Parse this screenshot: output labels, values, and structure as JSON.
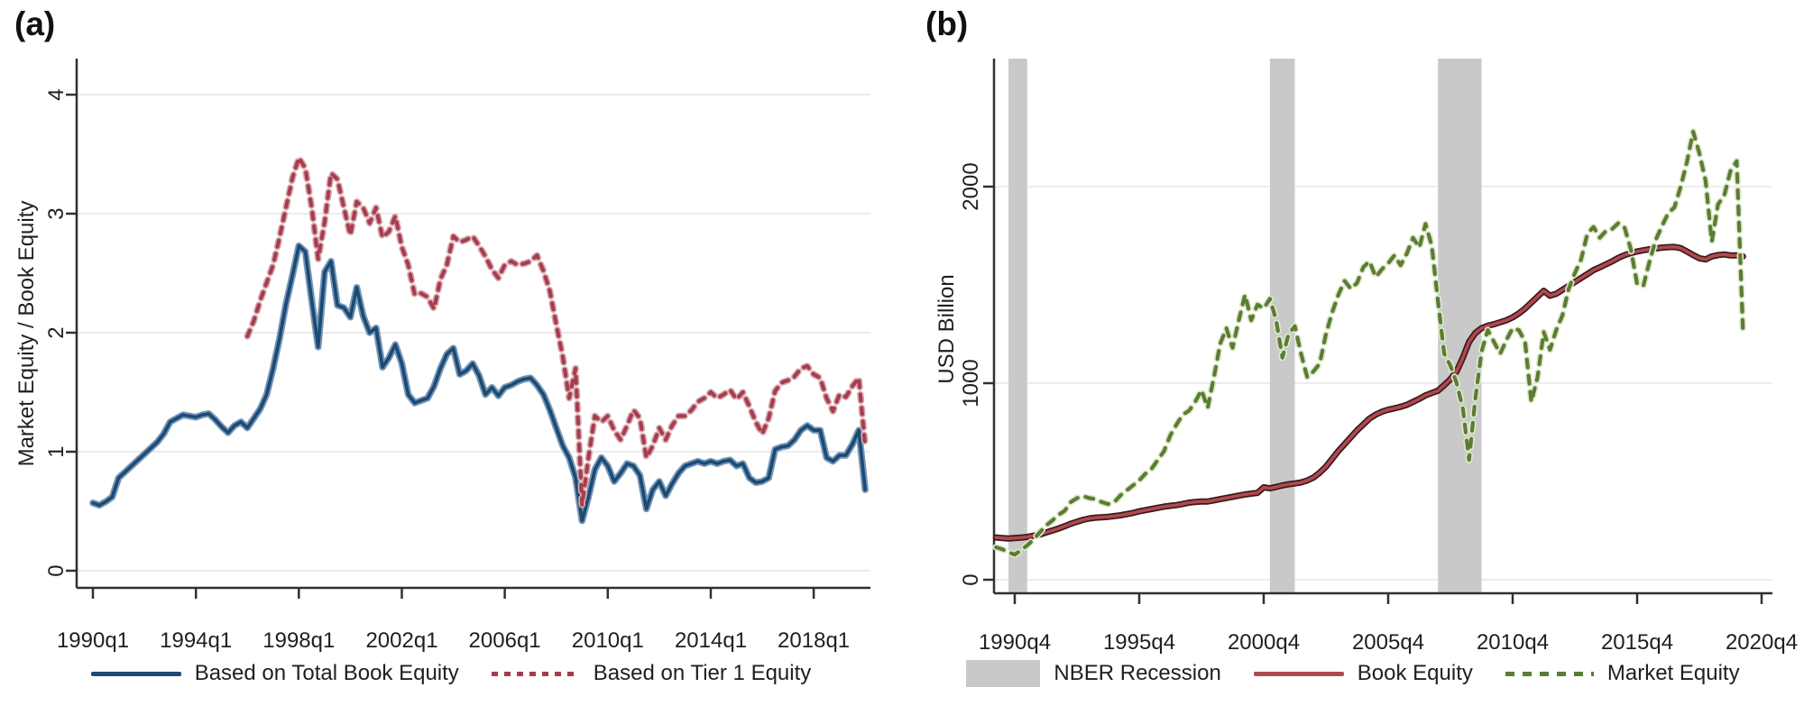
{
  "figure": {
    "background": "#ffffff"
  },
  "panels": {
    "a": {
      "label": "(a)",
      "y_axis": {
        "title": "Market Equity / Book Equity",
        "ticks": [
          0,
          1,
          2,
          3,
          4
        ],
        "range": [
          0,
          4
        ],
        "tick_labels_rotated": true
      },
      "x_axis": {
        "ticks": [
          "1990q1",
          "1994q1",
          "1998q1",
          "2002q1",
          "2006q1",
          "2010q1",
          "2014q1",
          "2018q1"
        ]
      }
    },
    "b": {
      "label": "(b)",
      "y_axis": {
        "title": "USD Billion",
        "ticks": [
          0,
          1000,
          2000
        ],
        "range": [
          0,
          2650
        ],
        "tick_labels_rotated": true
      },
      "x_axis": {
        "ticks": [
          "1990q4",
          "1995q4",
          "2000q4",
          "2005q4",
          "2010q4",
          "2015q4",
          "2020q4"
        ]
      }
    }
  },
  "chart_data": [
    {
      "type": "line",
      "panel": "a",
      "title": "",
      "xlabel": "",
      "ylabel": "Market Equity / Book Equity",
      "ylim": [
        0,
        4
      ],
      "grid": true,
      "legend_position": "bottom",
      "frequency": "quarterly",
      "series": [
        {
          "name": "Based on Total Book Equity",
          "style": "solid",
          "color": "#1b4a74",
          "halo": "#7495b5",
          "x_start": "1990q1",
          "values": [
            0.57,
            0.55,
            0.58,
            0.62,
            0.78,
            0.83,
            0.88,
            0.93,
            0.98,
            1.03,
            1.08,
            1.15,
            1.25,
            1.28,
            1.31,
            1.3,
            1.29,
            1.31,
            1.32,
            1.27,
            1.21,
            1.16,
            1.22,
            1.25,
            1.2,
            1.28,
            1.36,
            1.48,
            1.7,
            1.95,
            2.24,
            2.48,
            2.73,
            2.68,
            2.27,
            1.88,
            2.51,
            2.6,
            2.23,
            2.21,
            2.13,
            2.38,
            2.14,
            2.0,
            2.04,
            1.71,
            1.79,
            1.9,
            1.74,
            1.48,
            1.41,
            1.43,
            1.45,
            1.55,
            1.7,
            1.82,
            1.87,
            1.65,
            1.68,
            1.74,
            1.64,
            1.48,
            1.54,
            1.47,
            1.54,
            1.56,
            1.59,
            1.61,
            1.62,
            1.56,
            1.48,
            1.35,
            1.2,
            1.05,
            0.95,
            0.78,
            0.42,
            0.62,
            0.85,
            0.95,
            0.88,
            0.75,
            0.82,
            0.9,
            0.88,
            0.8,
            0.52,
            0.68,
            0.75,
            0.63,
            0.73,
            0.82,
            0.88,
            0.9,
            0.92,
            0.9,
            0.92,
            0.9,
            0.92,
            0.93,
            0.88,
            0.9,
            0.78,
            0.74,
            0.75,
            0.78,
            1.02,
            1.04,
            1.05,
            1.1,
            1.18,
            1.22,
            1.18,
            1.18,
            0.95,
            0.92,
            0.97,
            0.97,
            1.06,
            1.18,
            0.68
          ]
        },
        {
          "name": "Based on Tier 1 Equity",
          "style": "dashed",
          "color": "#a63d4e",
          "halo": "#d8aab1",
          "x_start": "1996q1",
          "values": [
            1.97,
            2.1,
            2.27,
            2.42,
            2.57,
            2.8,
            3.05,
            3.3,
            3.47,
            3.38,
            3.05,
            2.62,
            2.93,
            3.34,
            3.29,
            3.05,
            2.82,
            3.1,
            3.05,
            2.92,
            3.05,
            2.8,
            2.85,
            2.98,
            2.72,
            2.57,
            2.32,
            2.33,
            2.3,
            2.2,
            2.45,
            2.57,
            2.81,
            2.76,
            2.78,
            2.81,
            2.73,
            2.64,
            2.53,
            2.46,
            2.57,
            2.6,
            2.57,
            2.58,
            2.6,
            2.65,
            2.52,
            2.35,
            2.07,
            1.8,
            1.45,
            1.7,
            0.55,
            0.95,
            1.3,
            1.25,
            1.3,
            1.18,
            1.1,
            1.22,
            1.35,
            1.28,
            0.95,
            1.05,
            1.2,
            1.1,
            1.22,
            1.3,
            1.3,
            1.35,
            1.42,
            1.45,
            1.5,
            1.45,
            1.48,
            1.52,
            1.44,
            1.5,
            1.38,
            1.25,
            1.15,
            1.28,
            1.51,
            1.58,
            1.6,
            1.63,
            1.7,
            1.72,
            1.65,
            1.62,
            1.45,
            1.34,
            1.48,
            1.46,
            1.55,
            1.62,
            1.05
          ]
        }
      ]
    },
    {
      "type": "line",
      "panel": "b",
      "title": "",
      "xlabel": "",
      "ylabel": "USD Billion",
      "ylim": [
        0,
        2650
      ],
      "grid": true,
      "legend_position": "bottom",
      "frequency": "quarterly",
      "recession_label": "NBER Recession",
      "recession_color": "#c9c9c9",
      "recessions": [
        {
          "start": "1990q3",
          "end": "1991q1"
        },
        {
          "start": "2001q1",
          "end": "2001q4"
        },
        {
          "start": "2007q4",
          "end": "2009q2"
        }
      ],
      "series": [
        {
          "name": "Book Equity",
          "style": "solid",
          "color": "#ad4a50",
          "halo": "#3d181c",
          "x_start": "1990q1",
          "values": [
            215,
            212,
            210,
            212,
            214,
            218,
            224,
            230,
            240,
            250,
            260,
            272,
            285,
            295,
            305,
            312,
            316,
            318,
            320,
            324,
            328,
            334,
            340,
            348,
            354,
            360,
            366,
            372,
            376,
            380,
            386,
            392,
            396,
            398,
            398,
            404,
            410,
            416,
            422,
            428,
            434,
            438,
            442,
            470,
            465,
            472,
            480,
            486,
            490,
            495,
            505,
            520,
            545,
            575,
            615,
            655,
            690,
            725,
            760,
            790,
            820,
            840,
            855,
            865,
            872,
            880,
            890,
            905,
            920,
            938,
            950,
            962,
            990,
            1020,
            1060,
            1130,
            1210,
            1255,
            1280,
            1292,
            1300,
            1310,
            1320,
            1335,
            1355,
            1380,
            1410,
            1440,
            1470,
            1445,
            1455,
            1475,
            1495,
            1515,
            1535,
            1555,
            1575,
            1590,
            1605,
            1620,
            1638,
            1652,
            1662,
            1670,
            1676,
            1681,
            1686,
            1690,
            1692,
            1693,
            1687,
            1670,
            1652,
            1636,
            1630,
            1645,
            1652,
            1655,
            1650,
            1650,
            1645
          ]
        },
        {
          "name": "Market Equity",
          "style": "dashed",
          "color": "#5a7d33",
          "halo": "#e0e8cc",
          "x_start": "1990q1",
          "values": [
            165,
            155,
            140,
            128,
            150,
            175,
            205,
            240,
            275,
            300,
            330,
            350,
            395,
            415,
            425,
            415,
            410,
            395,
            385,
            395,
            430,
            455,
            480,
            505,
            540,
            565,
            610,
            655,
            735,
            790,
            840,
            860,
            905,
            965,
            875,
            1030,
            1200,
            1280,
            1180,
            1320,
            1450,
            1320,
            1400,
            1380,
            1430,
            1320,
            1130,
            1250,
            1290,
            1150,
            1030,
            1060,
            1100,
            1250,
            1360,
            1450,
            1520,
            1480,
            1510,
            1590,
            1620,
            1540,
            1580,
            1610,
            1650,
            1600,
            1660,
            1740,
            1690,
            1810,
            1700,
            1420,
            1150,
            1090,
            1000,
            870,
            610,
            920,
            1160,
            1270,
            1210,
            1150,
            1220,
            1280,
            1270,
            1210,
            905,
            1030,
            1260,
            1170,
            1270,
            1345,
            1480,
            1560,
            1630,
            1760,
            1795,
            1740,
            1775,
            1785,
            1815,
            1790,
            1680,
            1505,
            1495,
            1620,
            1730,
            1800,
            1865,
            1895,
            2000,
            2125,
            2280,
            2170,
            2030,
            1720,
            1910,
            1955,
            2080,
            2130,
            1270
          ]
        }
      ]
    }
  ]
}
